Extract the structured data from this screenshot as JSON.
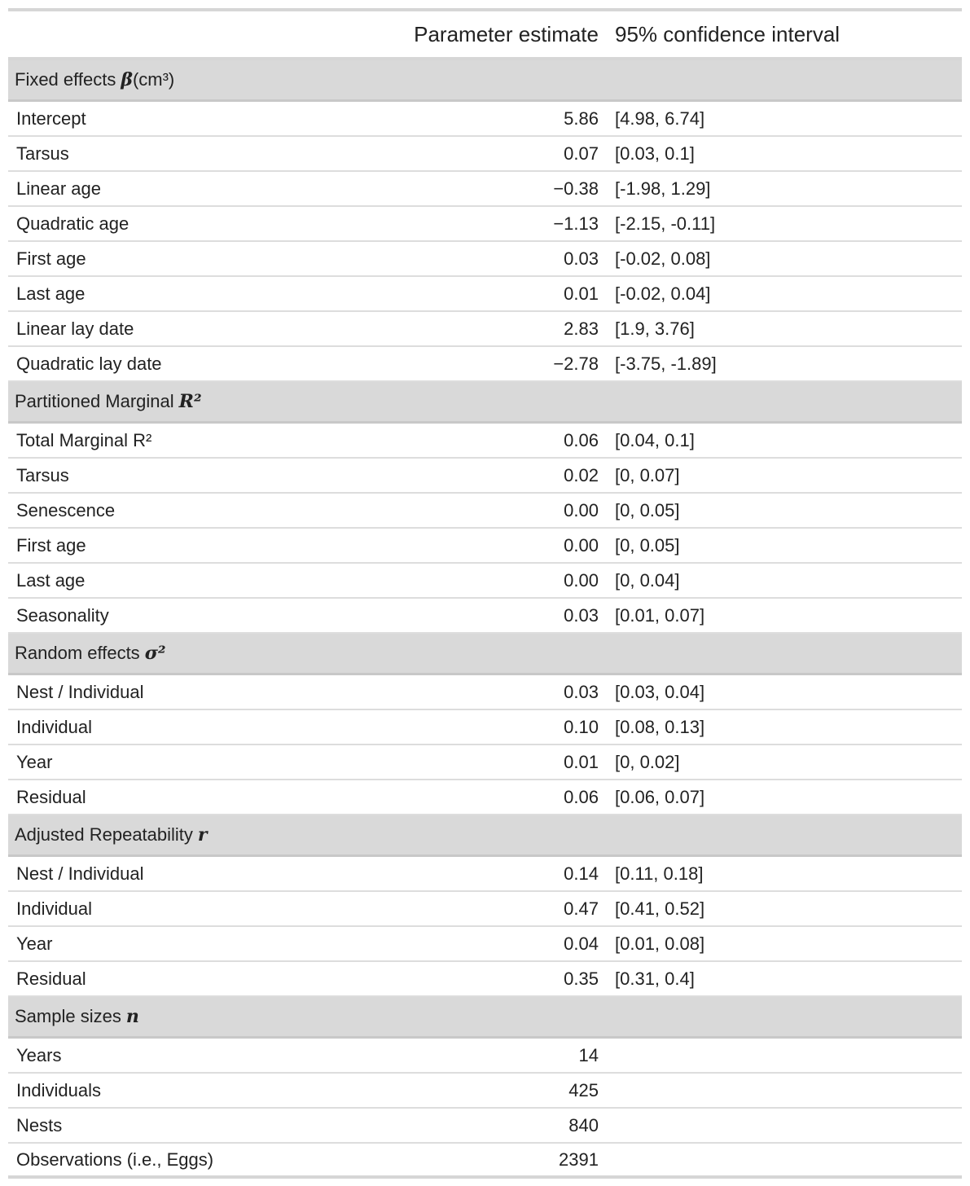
{
  "headers": {
    "label": "",
    "estimate": "Parameter estimate",
    "ci": "95% confidence interval"
  },
  "sections": [
    {
      "title": "Fixed effects",
      "symbol": "β",
      "suffix": " (cm³)",
      "rows": [
        {
          "label": "Intercept",
          "estimate": "5.86",
          "ci": "[4.98, 6.74]"
        },
        {
          "label": "Tarsus",
          "estimate": "0.07",
          "ci": "[0.03, 0.1]"
        },
        {
          "label": "Linear age",
          "estimate": "−0.38",
          "ci": "[-1.98, 1.29]"
        },
        {
          "label": "Quadratic age",
          "estimate": "−1.13",
          "ci": "[-2.15, -0.11]"
        },
        {
          "label": "First age",
          "estimate": "0.03",
          "ci": "[-0.02, 0.08]"
        },
        {
          "label": "Last age",
          "estimate": "0.01",
          "ci": "[-0.02, 0.04]"
        },
        {
          "label": "Linear lay date",
          "estimate": "2.83",
          "ci": "[1.9, 3.76]"
        },
        {
          "label": "Quadratic lay date",
          "estimate": "−2.78",
          "ci": "[-3.75, -1.89]"
        }
      ]
    },
    {
      "title": "Partitioned Marginal",
      "symbol": "R²",
      "suffix": "",
      "rows": [
        {
          "label": "Total Marginal R²",
          "estimate": "0.06",
          "ci": "[0.04, 0.1]"
        },
        {
          "label": "Tarsus",
          "estimate": "0.02",
          "ci": "[0, 0.07]"
        },
        {
          "label": "Senescence",
          "estimate": "0.00",
          "ci": "[0, 0.05]"
        },
        {
          "label": "First age",
          "estimate": "0.00",
          "ci": "[0, 0.05]"
        },
        {
          "label": "Last age",
          "estimate": "0.00",
          "ci": "[0, 0.04]"
        },
        {
          "label": "Seasonality",
          "estimate": "0.03",
          "ci": "[0.01, 0.07]"
        }
      ]
    },
    {
      "title": "Random effects",
      "symbol": "σ²",
      "suffix": "",
      "rows": [
        {
          "label": "Nest / Individual",
          "estimate": "0.03",
          "ci": "[0.03, 0.04]"
        },
        {
          "label": "Individual",
          "estimate": "0.10",
          "ci": "[0.08, 0.13]"
        },
        {
          "label": "Year",
          "estimate": "0.01",
          "ci": "[0, 0.02]"
        },
        {
          "label": "Residual",
          "estimate": "0.06",
          "ci": "[0.06, 0.07]"
        }
      ]
    },
    {
      "title": "Adjusted Repeatability",
      "symbol": "r",
      "suffix": "",
      "rows": [
        {
          "label": "Nest / Individual",
          "estimate": "0.14",
          "ci": "[0.11, 0.18]"
        },
        {
          "label": "Individual",
          "estimate": "0.47",
          "ci": "[0.41, 0.52]"
        },
        {
          "label": "Year",
          "estimate": "0.04",
          "ci": "[0.01, 0.08]"
        },
        {
          "label": "Residual",
          "estimate": "0.35",
          "ci": "[0.31, 0.4]"
        }
      ]
    },
    {
      "title": "Sample sizes",
      "symbol": "n",
      "suffix": "",
      "rows": [
        {
          "label": "Years",
          "estimate": "14",
          "ci": ""
        },
        {
          "label": "Individuals",
          "estimate": "425",
          "ci": ""
        },
        {
          "label": "Nests",
          "estimate": "840",
          "ci": ""
        },
        {
          "label": "Observations (i.e., Eggs)",
          "estimate": "2391",
          "ci": ""
        }
      ]
    }
  ]
}
